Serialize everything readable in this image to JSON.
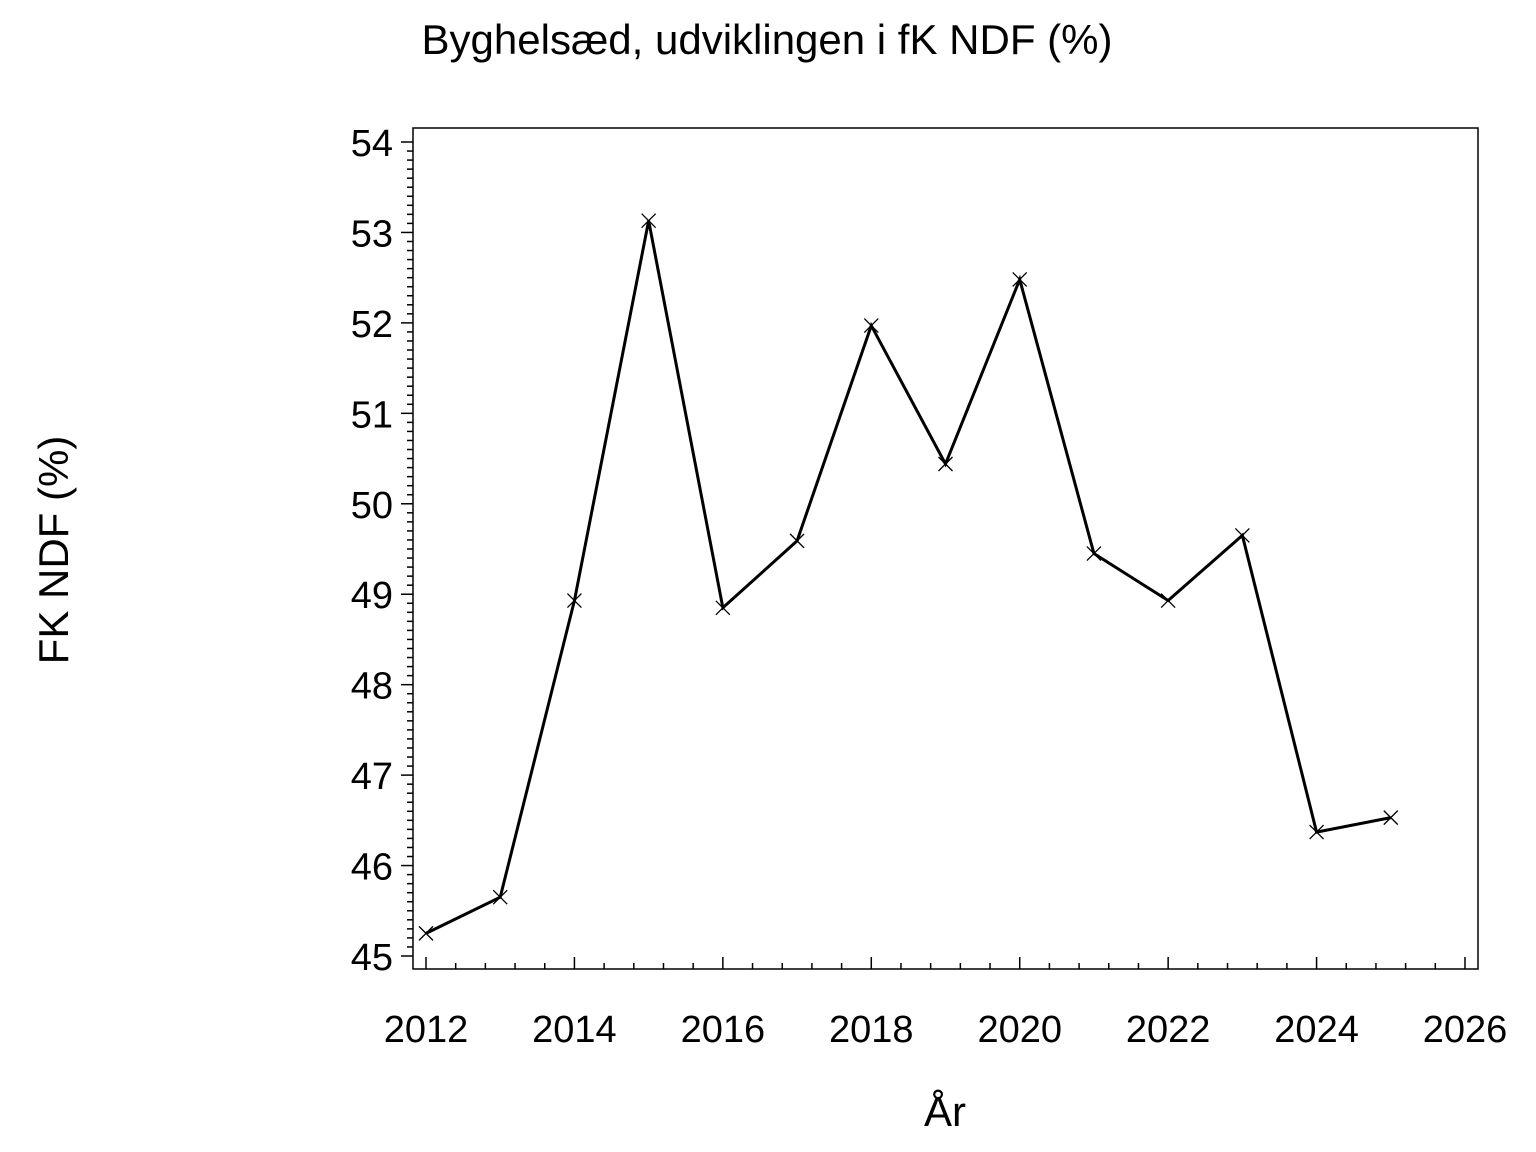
{
  "chart_data": {
    "type": "line",
    "title": "Byghelsæd, udviklingen i fK NDF (%)",
    "xlabel": "År",
    "ylabel": "FK NDF (%)",
    "xlim": [
      2012,
      2026
    ],
    "ylim": [
      45,
      54
    ],
    "x_ticks": [
      2012,
      2014,
      2016,
      2018,
      2020,
      2022,
      2024,
      2026
    ],
    "y_ticks": [
      45,
      46,
      47,
      48,
      49,
      50,
      51,
      52,
      53,
      54
    ],
    "grid": false,
    "marker": "x",
    "line_color": "#000000",
    "series": [
      {
        "name": "FK NDF",
        "x": [
          2012,
          2013,
          2014,
          2015,
          2016,
          2017,
          2018,
          2019,
          2020,
          2021,
          2022,
          2023,
          2024,
          2025
        ],
        "values": [
          45.25,
          45.65,
          48.93,
          53.13,
          48.85,
          49.59,
          51.97,
          50.44,
          52.48,
          49.45,
          48.93,
          49.65,
          46.37,
          46.53
        ]
      }
    ]
  }
}
